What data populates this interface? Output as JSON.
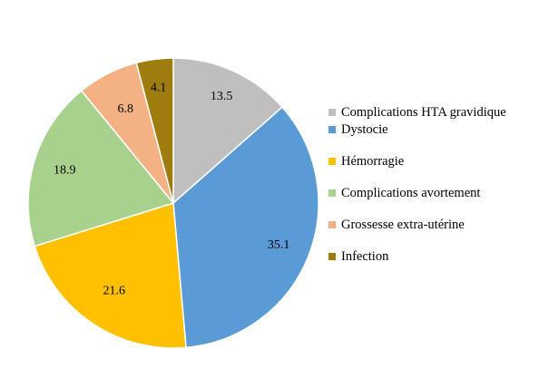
{
  "chart_data": {
    "type": "pie",
    "title": "",
    "slices": [
      {
        "label": "Complications HTA gravidique",
        "value": 13.5,
        "value_label": "13.5",
        "color": "#bfbfbf"
      },
      {
        "label": "Dystocie",
        "value": 35.1,
        "value_label": "35.1",
        "color": "#5b9bd5"
      },
      {
        "label": "Hémorragie",
        "value": 21.6,
        "value_label": "21.6",
        "color": "#ffc000"
      },
      {
        "label": "Complications avortement",
        "value": 18.9,
        "value_label": "18.9",
        "color": "#a9d18e"
      },
      {
        "label": "Grossesse extra-utérine",
        "value": 6.8,
        "value_label": "6.8",
        "color": "#f4b183"
      },
      {
        "label": "Infection",
        "value": 4.1,
        "value_label": "4.1",
        "color": "#9e7d0e"
      }
    ],
    "start_angle": "12 o'clock",
    "direction": "clockwise",
    "legend_position": "right"
  }
}
